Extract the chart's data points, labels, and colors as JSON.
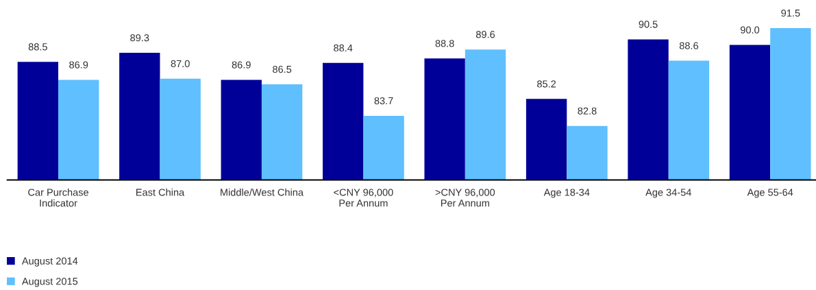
{
  "chart_data": {
    "type": "bar",
    "categories": [
      "Car Purchase\nIndicator",
      "East China",
      "Middle/West China",
      "<CNY 96,000\nPer Annum",
      ">CNY 96,000\nPer Annum",
      "Age 18-34",
      "Age 34-54",
      "Age 55-64"
    ],
    "series": [
      {
        "name": "August 2014",
        "color": "#000099",
        "values": [
          88.5,
          89.3,
          86.9,
          88.4,
          88.8,
          85.2,
          90.5,
          90.0
        ],
        "value_labels": [
          "88.5",
          "89.3",
          "86.9",
          "88.4",
          "88.8",
          "85.2",
          "90.5",
          "90.0"
        ]
      },
      {
        "name": "August 2015",
        "color": "#5fbfff",
        "values": [
          86.9,
          87.0,
          86.5,
          83.7,
          89.6,
          82.8,
          88.6,
          91.5
        ],
        "value_labels": [
          "86.9",
          "87.0",
          "86.5",
          "83.7",
          "89.6",
          "82.8",
          "88.6",
          "91.5"
        ]
      }
    ],
    "ylim": [
      78,
      91.5
    ],
    "tick_labels": "x",
    "legend": "bottom left"
  }
}
